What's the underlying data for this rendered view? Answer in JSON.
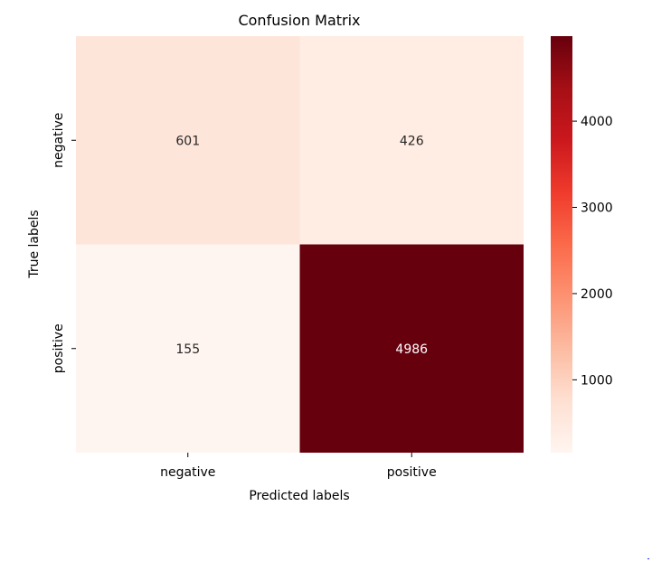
{
  "chart_data": {
    "type": "heatmap",
    "title": "Confusion Matrix",
    "xlabel": "Predicted labels",
    "ylabel": "True labels",
    "x_categories": [
      "negative",
      "positive"
    ],
    "y_categories": [
      "negative",
      "positive"
    ],
    "matrix": [
      [
        601,
        426
      ],
      [
        155,
        4986
      ]
    ],
    "colormap": "Reds",
    "colorbar": {
      "min": 155,
      "max": 4986,
      "ticks": [
        1000,
        2000,
        3000,
        4000
      ]
    },
    "colors": {
      "low": "#fff5f0",
      "high": "#67000d"
    }
  }
}
